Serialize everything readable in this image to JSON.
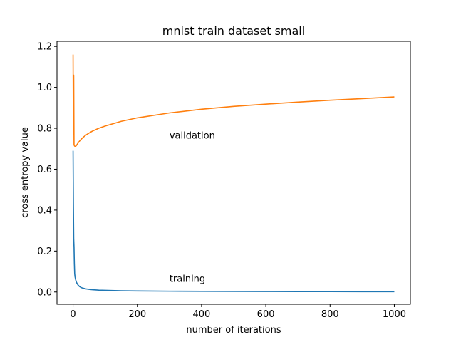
{
  "chart_data": {
    "type": "line",
    "title": "mnist train dataset small",
    "xlabel": "number of iterations",
    "ylabel": "cross entropy value",
    "xlim": [
      -50,
      1050
    ],
    "ylim": [
      -0.06,
      1.225
    ],
    "xticks": [
      0,
      200,
      400,
      600,
      800,
      1000
    ],
    "yticks": [
      0.0,
      0.2,
      0.4,
      0.6,
      0.8,
      1.0,
      1.2
    ],
    "grid": false,
    "series": [
      {
        "color": "#1f77b4",
        "x": [
          0,
          1,
          2,
          3,
          4,
          5,
          6,
          8,
          10,
          12,
          15,
          20,
          25,
          30,
          40,
          50,
          60,
          80,
          100,
          150,
          200,
          300,
          400,
          500,
          600,
          700,
          800,
          900,
          1000
        ],
        "y": [
          0.69,
          0.43,
          0.26,
          0.22,
          0.14,
          0.09,
          0.075,
          0.06,
          0.05,
          0.043,
          0.035,
          0.027,
          0.022,
          0.019,
          0.015,
          0.013,
          0.011,
          0.009,
          0.008,
          0.006,
          0.005,
          0.004,
          0.0033,
          0.0028,
          0.0024,
          0.0021,
          0.0019,
          0.0017,
          0.0015
        ]
      },
      {
        "color": "#ff7f0e",
        "x": [
          0,
          1,
          2,
          3,
          4,
          5,
          6,
          8,
          10,
          12,
          15,
          20,
          25,
          30,
          40,
          50,
          60,
          80,
          100,
          150,
          200,
          300,
          400,
          500,
          600,
          700,
          800,
          900,
          1000
        ],
        "y": [
          1.16,
          0.77,
          1.06,
          0.72,
          0.715,
          0.713,
          0.712,
          0.712,
          0.715,
          0.72,
          0.727,
          0.737,
          0.746,
          0.754,
          0.767,
          0.777,
          0.786,
          0.8,
          0.811,
          0.834,
          0.851,
          0.875,
          0.893,
          0.907,
          0.918,
          0.928,
          0.937,
          0.945,
          0.953
        ]
      }
    ],
    "annotations": [
      {
        "text": "validation",
        "x": 300,
        "y": 0.75
      },
      {
        "text": "training",
        "x": 300,
        "y": 0.05
      }
    ]
  }
}
